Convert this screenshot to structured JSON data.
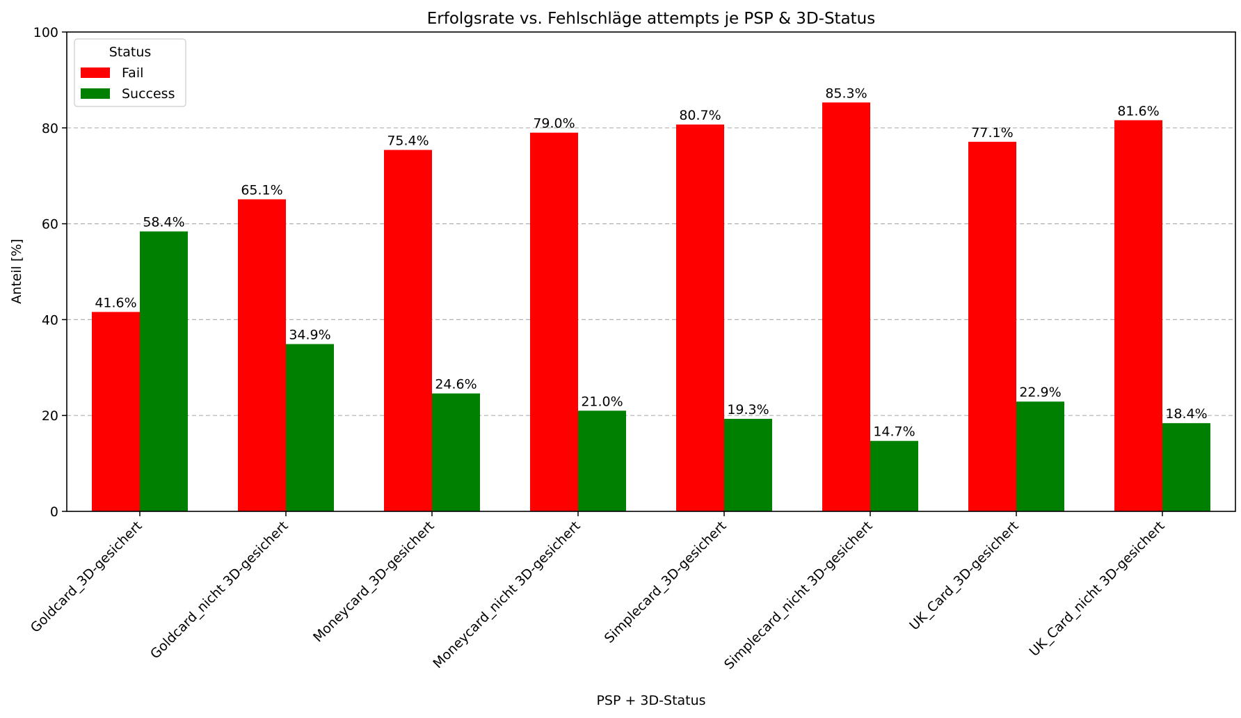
{
  "chart_data": {
    "type": "bar",
    "title": "Erfolgsrate vs. Fehlschläge attempts je PSP & 3D-Status",
    "xlabel": "PSP + 3D-Status",
    "ylabel": "Anteil [%]",
    "ylim": [
      0,
      100
    ],
    "yticks": [
      0,
      20,
      40,
      60,
      80,
      100
    ],
    "grid": "y, dashed",
    "legend": {
      "title": "Status",
      "position": "top-left"
    },
    "categories": [
      "Goldcard_3D-gesichert",
      "Goldcard_nicht 3D-gesichert",
      "Moneycard_3D-gesichert",
      "Moneycard_nicht 3D-gesichert",
      "Simplecard_3D-gesichert",
      "Simplecard_nicht 3D-gesichert",
      "UK_Card_3D-gesichert",
      "UK_Card_nicht 3D-gesichert"
    ],
    "series": [
      {
        "name": "Fail",
        "color": "#ff0000",
        "values": [
          41.6,
          65.1,
          75.4,
          79.0,
          80.7,
          85.3,
          77.1,
          81.6
        ]
      },
      {
        "name": "Success",
        "color": "#008000",
        "values": [
          58.4,
          34.9,
          24.6,
          21.0,
          19.3,
          14.7,
          22.9,
          18.4
        ]
      }
    ],
    "value_labels": [
      [
        "41.6%",
        "65.1%",
        "75.4%",
        "79.0%",
        "80.7%",
        "85.3%",
        "77.1%",
        "81.6%"
      ],
      [
        "58.4%",
        "34.9%",
        "24.6%",
        "21.0%",
        "19.3%",
        "14.7%",
        "22.9%",
        "18.4%"
      ]
    ]
  }
}
